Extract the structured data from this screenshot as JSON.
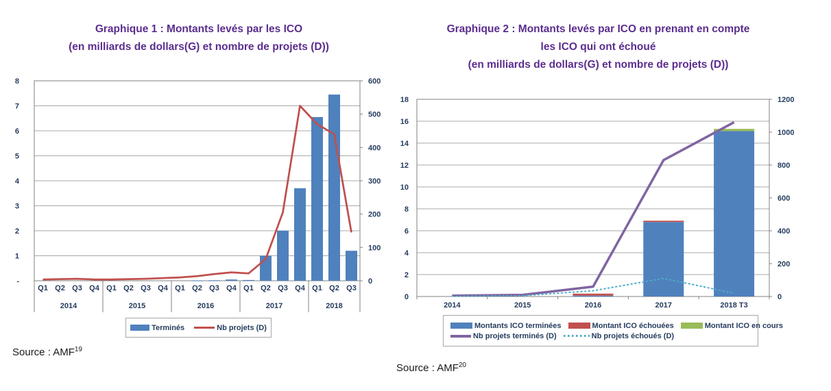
{
  "colors": {
    "title": "#5b2d8e",
    "axis_text": "#253c5e",
    "bar_blue": "#4f81bd",
    "line_red": "#c0504d",
    "line_purple": "#8064a2",
    "bar_green": "#9bbb59",
    "line_dotted_blue": "#4bacc6",
    "grid": "#a8a8a8",
    "border": "#808080"
  },
  "sources": [
    {
      "text": "Source : AMF",
      "sup": "19"
    },
    {
      "text": "Source : AMF",
      "sup": "20"
    }
  ],
  "chart_data": [
    {
      "type": "bar+line",
      "title": "Graphique 1 : Montants levés par les ICO",
      "subtitle": "(en milliards de dollars(G) et nombre de projets (D))",
      "categories": [
        "Q1",
        "Q2",
        "Q3",
        "Q4",
        "Q1",
        "Q2",
        "Q3",
        "Q4",
        "Q1",
        "Q2",
        "Q3",
        "Q4",
        "Q1",
        "Q2",
        "Q3",
        "Q4",
        "Q1",
        "Q2",
        "Q3"
      ],
      "year_groups": [
        {
          "label": "2014",
          "span": 4
        },
        {
          "label": "2015",
          "span": 4
        },
        {
          "label": "2016",
          "span": 4
        },
        {
          "label": "2017",
          "span": 4
        },
        {
          "label": "2018",
          "span": 3
        }
      ],
      "left_axis": {
        "min": 0,
        "max": 8,
        "tick_step": 1,
        "tick_labels": [
          "-",
          "1",
          "2",
          "3",
          "4",
          "5",
          "6",
          "7",
          "8"
        ]
      },
      "right_axis": {
        "min": 0,
        "max": 600,
        "tick_step": 100,
        "tick_labels": [
          "0",
          "100",
          "200",
          "300",
          "400",
          "500",
          "600"
        ]
      },
      "grid": true,
      "legend_position": "bottom",
      "series": [
        {
          "name": "Terminés",
          "type": "bar",
          "axis": "left",
          "color": "#4f81bd",
          "values": [
            0,
            0,
            0,
            0,
            0,
            0,
            0,
            0,
            0,
            0.01,
            0.02,
            0.05,
            0.03,
            1.0,
            2.0,
            3.7,
            6.55,
            7.45,
            1.2
          ]
        },
        {
          "name": "Nb projets (D)",
          "type": "line",
          "axis": "right",
          "color": "#c0504d",
          "values": [
            4,
            5,
            6,
            4,
            4,
            5,
            6,
            8,
            10,
            14,
            20,
            25,
            22,
            65,
            205,
            525,
            470,
            440,
            145
          ]
        }
      ]
    },
    {
      "type": "bar+line",
      "title": "Graphique 2 : Montants levés par ICO en prenant en compte les ICO qui ont échoué",
      "title_lines": [
        "Graphique 2 : Montants levés par ICO en prenant en compte",
        "les ICO qui ont échoué"
      ],
      "subtitle": "(en milliards de dollars(G) et nombre de projets (D))",
      "categories": [
        "2014",
        "2015",
        "2016",
        "2017",
        "2018 T3"
      ],
      "left_axis": {
        "min": 0,
        "max": 18,
        "tick_step": 2,
        "tick_labels": [
          "0",
          "2",
          "4",
          "6",
          "8",
          "10",
          "12",
          "14",
          "16",
          "18"
        ]
      },
      "right_axis": {
        "min": 0,
        "max": 1200,
        "tick_step": 200,
        "tick_labels": [
          "0",
          "200",
          "400",
          "600",
          "800",
          "1000",
          "1200"
        ]
      },
      "grid": true,
      "legend_position": "bottom",
      "series": [
        {
          "name": "Montants ICO terminées",
          "type": "bar",
          "stack": true,
          "axis": "left",
          "color": "#4f81bd",
          "values": [
            0,
            0,
            0.08,
            6.8,
            15.1
          ]
        },
        {
          "name": "Montant ICO échouées",
          "type": "bar",
          "stack": true,
          "axis": "left",
          "color": "#c0504d",
          "values": [
            0,
            0,
            0.18,
            0.12,
            0
          ]
        },
        {
          "name": "Montant ICO en cours",
          "type": "bar",
          "stack": true,
          "axis": "left",
          "color": "#9bbb59",
          "values": [
            0,
            0,
            0,
            0,
            0.2
          ]
        },
        {
          "name": "Nb projets terminés (D)",
          "type": "line",
          "axis": "right",
          "color": "#8064a2",
          "values": [
            5,
            10,
            60,
            830,
            1060
          ]
        },
        {
          "name": "Nb projets échoués (D)",
          "type": "line",
          "style": "dotted",
          "axis": "right",
          "color": "#4bacc6",
          "values": [
            2,
            5,
            35,
            110,
            20
          ]
        }
      ]
    }
  ]
}
